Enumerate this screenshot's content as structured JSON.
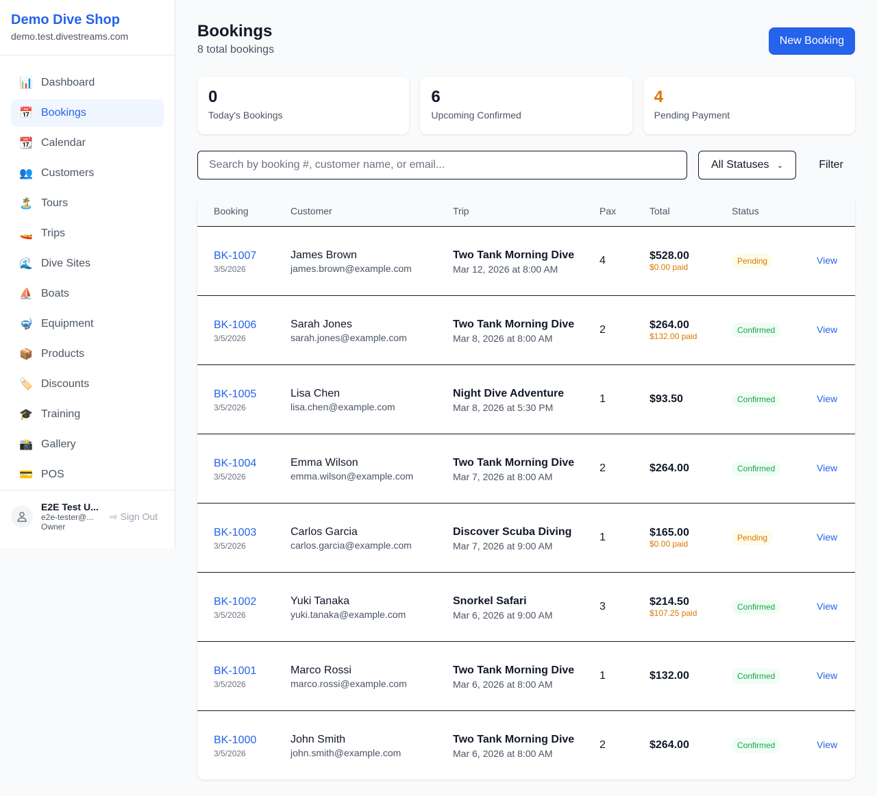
{
  "sidebar": {
    "brand": "Demo Dive Shop",
    "domain": "demo.test.divestreams.com",
    "items": [
      {
        "label": "Dashboard",
        "icon": "📊"
      },
      {
        "label": "Bookings",
        "icon": "📅"
      },
      {
        "label": "Calendar",
        "icon": "📆"
      },
      {
        "label": "Customers",
        "icon": "👥"
      },
      {
        "label": "Tours",
        "icon": "🏝️"
      },
      {
        "label": "Trips",
        "icon": "🚤"
      },
      {
        "label": "Dive Sites",
        "icon": "🌊"
      },
      {
        "label": "Boats",
        "icon": "⛵"
      },
      {
        "label": "Equipment",
        "icon": "🤿"
      },
      {
        "label": "Products",
        "icon": "📦"
      },
      {
        "label": "Discounts",
        "icon": "🏷️"
      },
      {
        "label": "Training",
        "icon": "🎓"
      },
      {
        "label": "Gallery",
        "icon": "📸"
      },
      {
        "label": "POS",
        "icon": "💳"
      }
    ],
    "user": {
      "name": "E2E Test U...",
      "email": "e2e-tester@...",
      "role": "Owner",
      "sign_out": "Sign Out"
    }
  },
  "header": {
    "title": "Bookings",
    "subtitle": "8 total bookings",
    "new_button": "New Booking"
  },
  "stats": [
    {
      "value": "0",
      "label": "Today's Bookings",
      "color": "#111827"
    },
    {
      "value": "6",
      "label": "Upcoming Confirmed",
      "color": "#111827"
    },
    {
      "value": "4",
      "label": "Pending Payment",
      "color": "#d97706"
    }
  ],
  "filters": {
    "search_placeholder": "Search by booking #, customer name, or email...",
    "status_selected": "All Statuses",
    "filter_label": "Filter"
  },
  "table": {
    "headers": [
      "Booking",
      "Customer",
      "Trip",
      "Pax",
      "Total",
      "Status",
      ""
    ],
    "rows": [
      {
        "id": "BK-1007",
        "date": "3/5/2026",
        "name": "James Brown",
        "email": "james.brown@example.com",
        "trip": "Two Tank Morning Dive",
        "trip_date": "Mar 12, 2026 at 8:00 AM",
        "pax": "4",
        "total": "$528.00",
        "paid": "$0.00 paid",
        "status": "Pending",
        "action": "View"
      },
      {
        "id": "BK-1006",
        "date": "3/5/2026",
        "name": "Sarah Jones",
        "email": "sarah.jones@example.com",
        "trip": "Two Tank Morning Dive",
        "trip_date": "Mar 8, 2026 at 8:00 AM",
        "pax": "2",
        "total": "$264.00",
        "paid": "$132.00 paid",
        "status": "Confirmed",
        "action": "View"
      },
      {
        "id": "BK-1005",
        "date": "3/5/2026",
        "name": "Lisa Chen",
        "email": "lisa.chen@example.com",
        "trip": "Night Dive Adventure",
        "trip_date": "Mar 8, 2026 at 5:30 PM",
        "pax": "1",
        "total": "$93.50",
        "paid": null,
        "status": "Confirmed",
        "action": "View"
      },
      {
        "id": "BK-1004",
        "date": "3/5/2026",
        "name": "Emma Wilson",
        "email": "emma.wilson@example.com",
        "trip": "Two Tank Morning Dive",
        "trip_date": "Mar 7, 2026 at 8:00 AM",
        "pax": "2",
        "total": "$264.00",
        "paid": null,
        "status": "Confirmed",
        "action": "View"
      },
      {
        "id": "BK-1003",
        "date": "3/5/2026",
        "name": "Carlos Garcia",
        "email": "carlos.garcia@example.com",
        "trip": "Discover Scuba Diving",
        "trip_date": "Mar 7, 2026 at 9:00 AM",
        "pax": "1",
        "total": "$165.00",
        "paid": "$0.00 paid",
        "status": "Pending",
        "action": "View"
      },
      {
        "id": "BK-1002",
        "date": "3/5/2026",
        "name": "Yuki Tanaka",
        "email": "yuki.tanaka@example.com",
        "trip": "Snorkel Safari",
        "trip_date": "Mar 6, 2026 at 9:00 AM",
        "pax": "3",
        "total": "$214.50",
        "paid": "$107.25 paid",
        "status": "Confirmed",
        "action": "View"
      },
      {
        "id": "BK-1001",
        "date": "3/5/2026",
        "name": "Marco Rossi",
        "email": "marco.rossi@example.com",
        "trip": "Two Tank Morning Dive",
        "trip_date": "Mar 6, 2026 at 8:00 AM",
        "pax": "1",
        "total": "$132.00",
        "paid": null,
        "status": "Confirmed",
        "action": "View"
      },
      {
        "id": "BK-1000",
        "date": "3/5/2026",
        "name": "John Smith",
        "email": "john.smith@example.com",
        "trip": "Two Tank Morning Dive",
        "trip_date": "Mar 6, 2026 at 8:00 AM",
        "pax": "2",
        "total": "$264.00",
        "paid": null,
        "status": "Confirmed",
        "action": "View"
      }
    ]
  }
}
